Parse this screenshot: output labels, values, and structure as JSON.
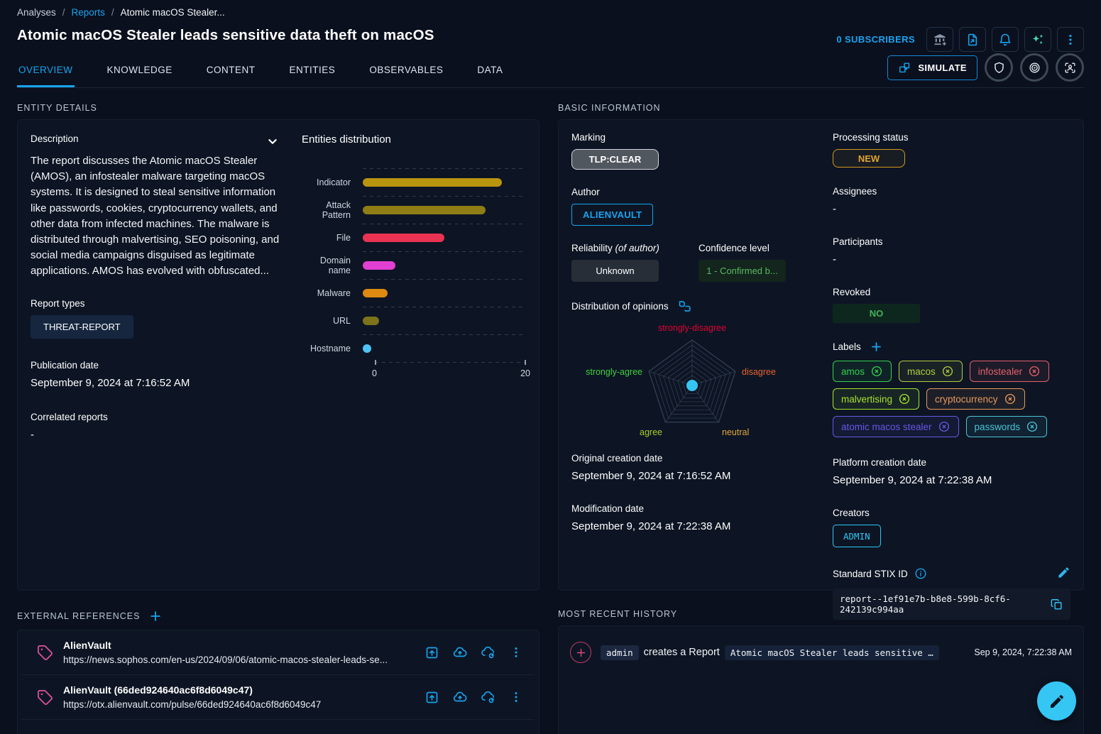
{
  "breadcrumb": {
    "items": [
      "Analyses",
      "Reports",
      "Atomic macOS Stealer..."
    ],
    "separator": "/"
  },
  "header": {
    "title": "Atomic macOS Stealer leads sensitive data theft on macOS",
    "subscribers_label": "0 SUBSCRIBERS",
    "simulate_label": "SIMULATE"
  },
  "tabs": [
    {
      "label": "OVERVIEW",
      "active": true
    },
    {
      "label": "KNOWLEDGE",
      "active": false
    },
    {
      "label": "CONTENT",
      "active": false
    },
    {
      "label": "ENTITIES",
      "active": false
    },
    {
      "label": "OBSERVABLES",
      "active": false
    },
    {
      "label": "DATA",
      "active": false
    }
  ],
  "entity_details": {
    "section_title": "ENTITY DETAILS",
    "description_label": "Description",
    "description": "The report discusses the Atomic macOS Stealer (AMOS), an infostealer malware targeting macOS systems. It is designed to steal sensitive information like passwords, cookies, cryptocurrency wallets, and other data from infected machines. The malware is distributed through malvertising, SEO poisoning, and social media campaigns disguised as legitimate applications. AMOS has evolved with obfuscated...",
    "report_types_label": "Report types",
    "report_types": [
      "THREAT-REPORT"
    ],
    "publication_date_label": "Publication date",
    "publication_date": "September 9, 2024 at 7:16:52 AM",
    "correlated_reports_label": "Correlated reports",
    "correlated_reports": "-"
  },
  "chart_data": [
    {
      "type": "bar",
      "title": "Entities distribution",
      "orientation": "horizontal",
      "categories": [
        "Indicator",
        "Attack Pattern",
        "File",
        "Domain name",
        "Malware",
        "URL",
        "Hostname"
      ],
      "values": [
        17,
        15,
        10,
        4,
        3,
        2,
        1
      ],
      "colors": [
        "#b9940e",
        "#8f7d15",
        "#ea3252",
        "#e23fd3",
        "#de8a10",
        "#7d731a",
        "#4fc3f7"
      ],
      "xlim": [
        0,
        20
      ],
      "x_ticks": [
        "0",
        "20"
      ],
      "grid": "dashed-horizontal",
      "legend": "none"
    },
    {
      "type": "radar",
      "title": "Distribution of opinions",
      "categories": [
        "strongly-disagree",
        "disagree",
        "neutral",
        "agree",
        "strongly-agree"
      ],
      "values": [
        0,
        0,
        0,
        0,
        0
      ],
      "label_colors": [
        "#e3002f",
        "#e8622e",
        "#e2a73b",
        "#a9cb28",
        "#3ecf3e"
      ],
      "rings": 9,
      "marker_color": "#35c6f4",
      "legend": "none"
    }
  ],
  "basic_information": {
    "section_title": "BASIC INFORMATION",
    "marking_label": "Marking",
    "marking": "TLP:CLEAR",
    "author_label": "Author",
    "author": "ALIENVAULT",
    "reliability_label": "Reliability",
    "reliability_suffix": "(of author)",
    "reliability": "Unknown",
    "confidence_label": "Confidence level",
    "confidence": "1 - Confirmed b...",
    "original_creation_date_label": "Original creation date",
    "original_creation_date": "September 9, 2024 at 7:16:52 AM",
    "modification_date_label": "Modification date",
    "modification_date": "September 9, 2024 at 7:22:38 AM",
    "processing_status_label": "Processing status",
    "processing_status": "NEW",
    "assignees_label": "Assignees",
    "assignees": "-",
    "participants_label": "Participants",
    "participants": "-",
    "revoked_label": "Revoked",
    "revoked": "NO",
    "labels_label": "Labels",
    "labels": [
      {
        "text": "amos",
        "color": "#35d04d"
      },
      {
        "text": "macos",
        "color": "#b5cc3f"
      },
      {
        "text": "infostealer",
        "color": "#e4606a"
      },
      {
        "text": "malvertising",
        "color": "#a8e22e"
      },
      {
        "text": "cryptocurrency",
        "color": "#e59a5c"
      },
      {
        "text": "atomic macos stealer",
        "color": "#6857e5"
      },
      {
        "text": "passwords",
        "color": "#47c4d8"
      }
    ],
    "platform_creation_date_label": "Platform creation date",
    "platform_creation_date": "September 9, 2024 at 7:22:38 AM",
    "creators_label": "Creators",
    "creators": [
      "ADMIN"
    ],
    "stix_id_label": "Standard STIX ID",
    "stix_id": "report--1ef91e7b-b8e8-599b-8cf6-242139c994aa"
  },
  "external_references": {
    "section_title": "EXTERNAL REFERENCES",
    "items": [
      {
        "name": "AlienVault",
        "url": "https://news.sophos.com/en-us/2024/09/06/atomic-macos-stealer-leads-se..."
      },
      {
        "name": "AlienVault (66ded924640ac6f8d6049c47)",
        "url": "https://otx.alienvault.com/pulse/66ded924640ac6f8d6049c47"
      }
    ]
  },
  "history": {
    "section_title": "MOST RECENT HISTORY",
    "items": [
      {
        "actor": "admin",
        "action": "creates a Report",
        "target": "Atomic macOS Stealer leads sensitive …",
        "timestamp": "Sep 9, 2024, 7:22:38 AM"
      }
    ]
  }
}
